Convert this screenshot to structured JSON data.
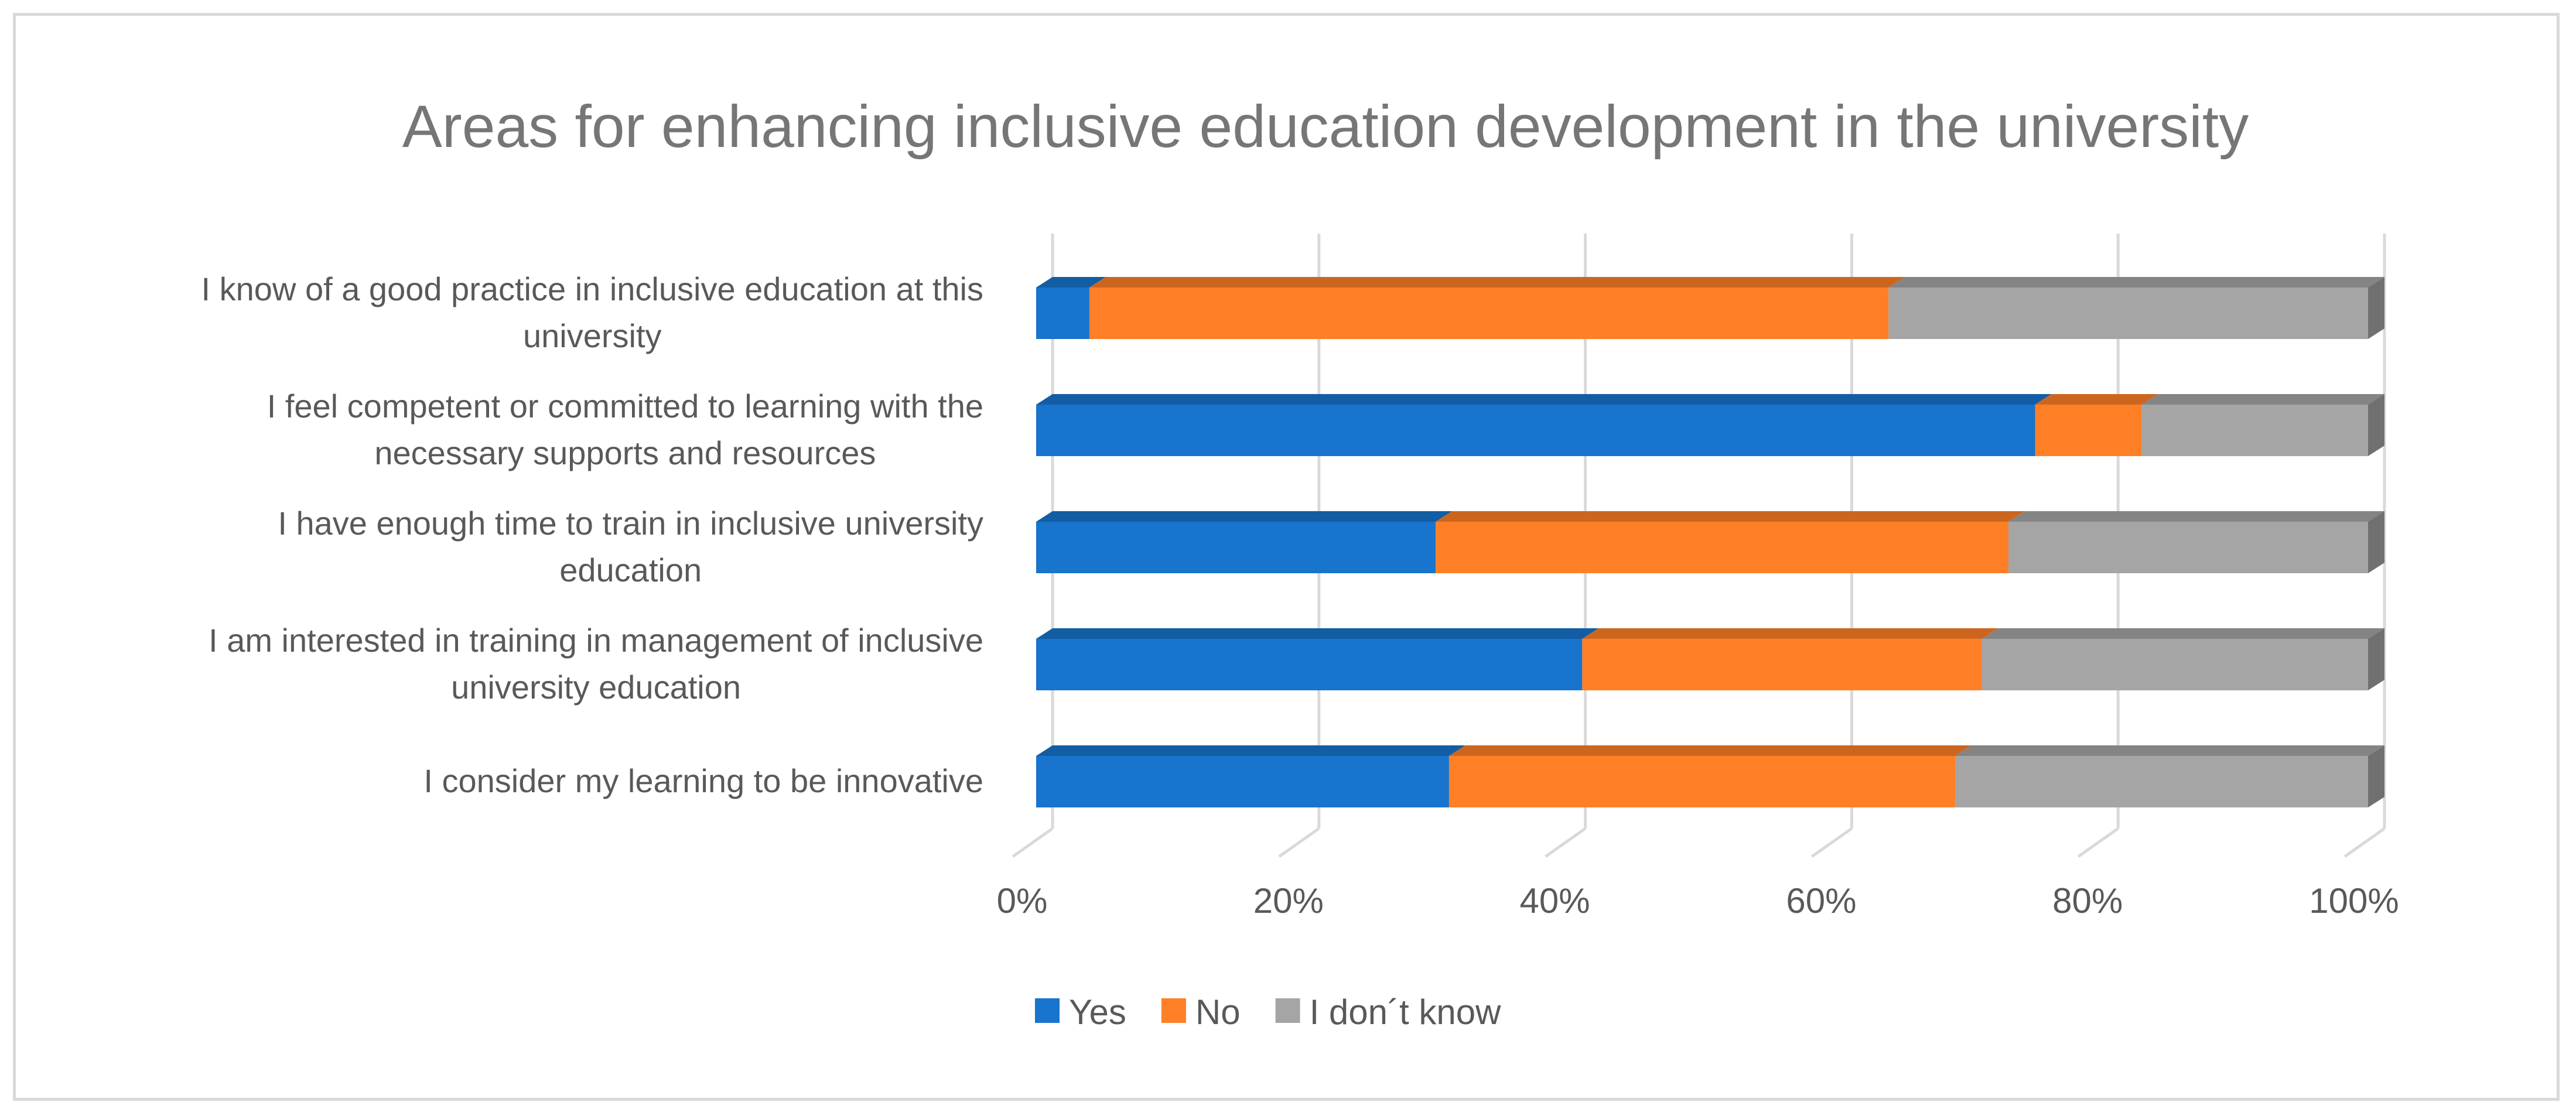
{
  "chart_data": {
    "type": "bar",
    "orientation": "horizontal",
    "stacked": true,
    "percent_stacked": true,
    "style": "3d",
    "title": "Areas for enhancing inclusive education development in the university",
    "xlabel": "",
    "ylabel": "",
    "xlim": [
      0,
      100
    ],
    "x_tick_labels": [
      "0%",
      "20%",
      "40%",
      "60%",
      "80%",
      "100%"
    ],
    "categories": [
      [
        "I know of a good practice in inclusive education at this",
        "university"
      ],
      [
        "I feel competent or committed to learning with the",
        "necessary supports and resources"
      ],
      [
        "I have enough time to train in inclusive university",
        "education"
      ],
      [
        "I am interested in training in management of inclusive",
        "university education"
      ],
      [
        "I consider my learning to be innovative"
      ]
    ],
    "series": [
      {
        "name": "Yes",
        "color": "#1874cd",
        "values": [
          4,
          75,
          30,
          41,
          31
        ]
      },
      {
        "name": "No",
        "color": "#ff7f27",
        "values": [
          60,
          8,
          43,
          30,
          38
        ]
      },
      {
        "name": "I don´t know",
        "color": "#a5a5a5",
        "values": [
          36,
          17,
          27,
          29,
          31
        ]
      }
    ],
    "grid": true,
    "legend_position": "bottom"
  }
}
